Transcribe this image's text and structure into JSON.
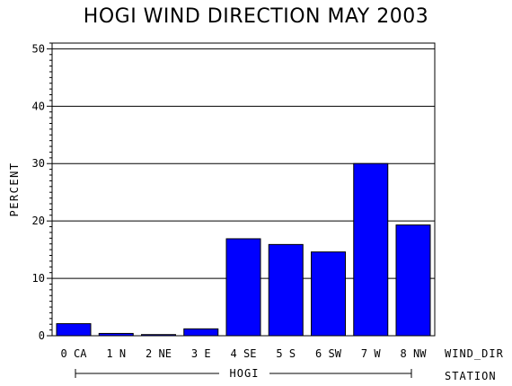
{
  "chart_data": {
    "type": "bar",
    "title": "HOGI WIND DIRECTION MAY 2003",
    "ylabel": "PERCENT",
    "xlabel": "WIND_DIR",
    "group_axis_label": "STATION",
    "group_label": "HOGI",
    "categories": [
      "0 CA",
      "1 N",
      "2 NE",
      "3 E",
      "4 SE",
      "5 S",
      "6 SW",
      "7 W",
      "8 NW"
    ],
    "values": [
      2.1,
      0.4,
      0.2,
      1.2,
      16.9,
      15.9,
      14.6,
      30.0,
      19.3
    ],
    "ylim": [
      0,
      51
    ],
    "yticks": [
      0,
      10,
      20,
      30,
      40,
      50
    ],
    "grid": true,
    "bar_color": "#0000ff"
  }
}
